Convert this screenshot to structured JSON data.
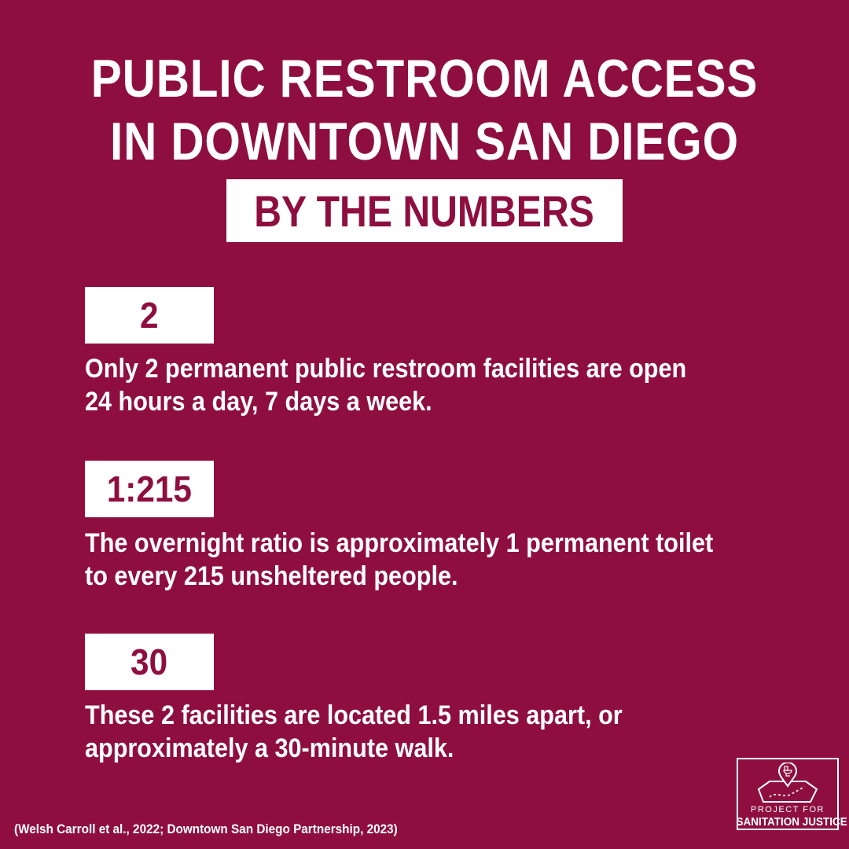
{
  "header": {
    "title_line1": "PUBLIC RESTROOM ACCESS",
    "title_line2": "IN DOWNTOWN SAN DIEGO",
    "banner": "BY THE NUMBERS"
  },
  "stats": [
    {
      "value": "2",
      "lines": [
        "Only 2 permanent public restroom facilities are open",
        "24 hours a day, 7 days a week."
      ]
    },
    {
      "value": "1:215",
      "lines": [
        "The overnight ratio is approximately 1 permanent toilet",
        "to every 215 unsheltered people."
      ]
    },
    {
      "value": "30",
      "lines": [
        "These 2 facilities are located 1.5 miles apart, or",
        "approximately a 30-minute walk."
      ]
    }
  ],
  "citation": "(Welsh Carroll et al., 2022; Downtown San Diego Partnership, 2023)",
  "logo": {
    "line1": "PROJECT FOR",
    "line2": "SANITATION JUSTICE",
    "icon": "map-pin-toilet-icon"
  },
  "colors": {
    "background": "#8e0f3f",
    "text": "#ffffff"
  }
}
